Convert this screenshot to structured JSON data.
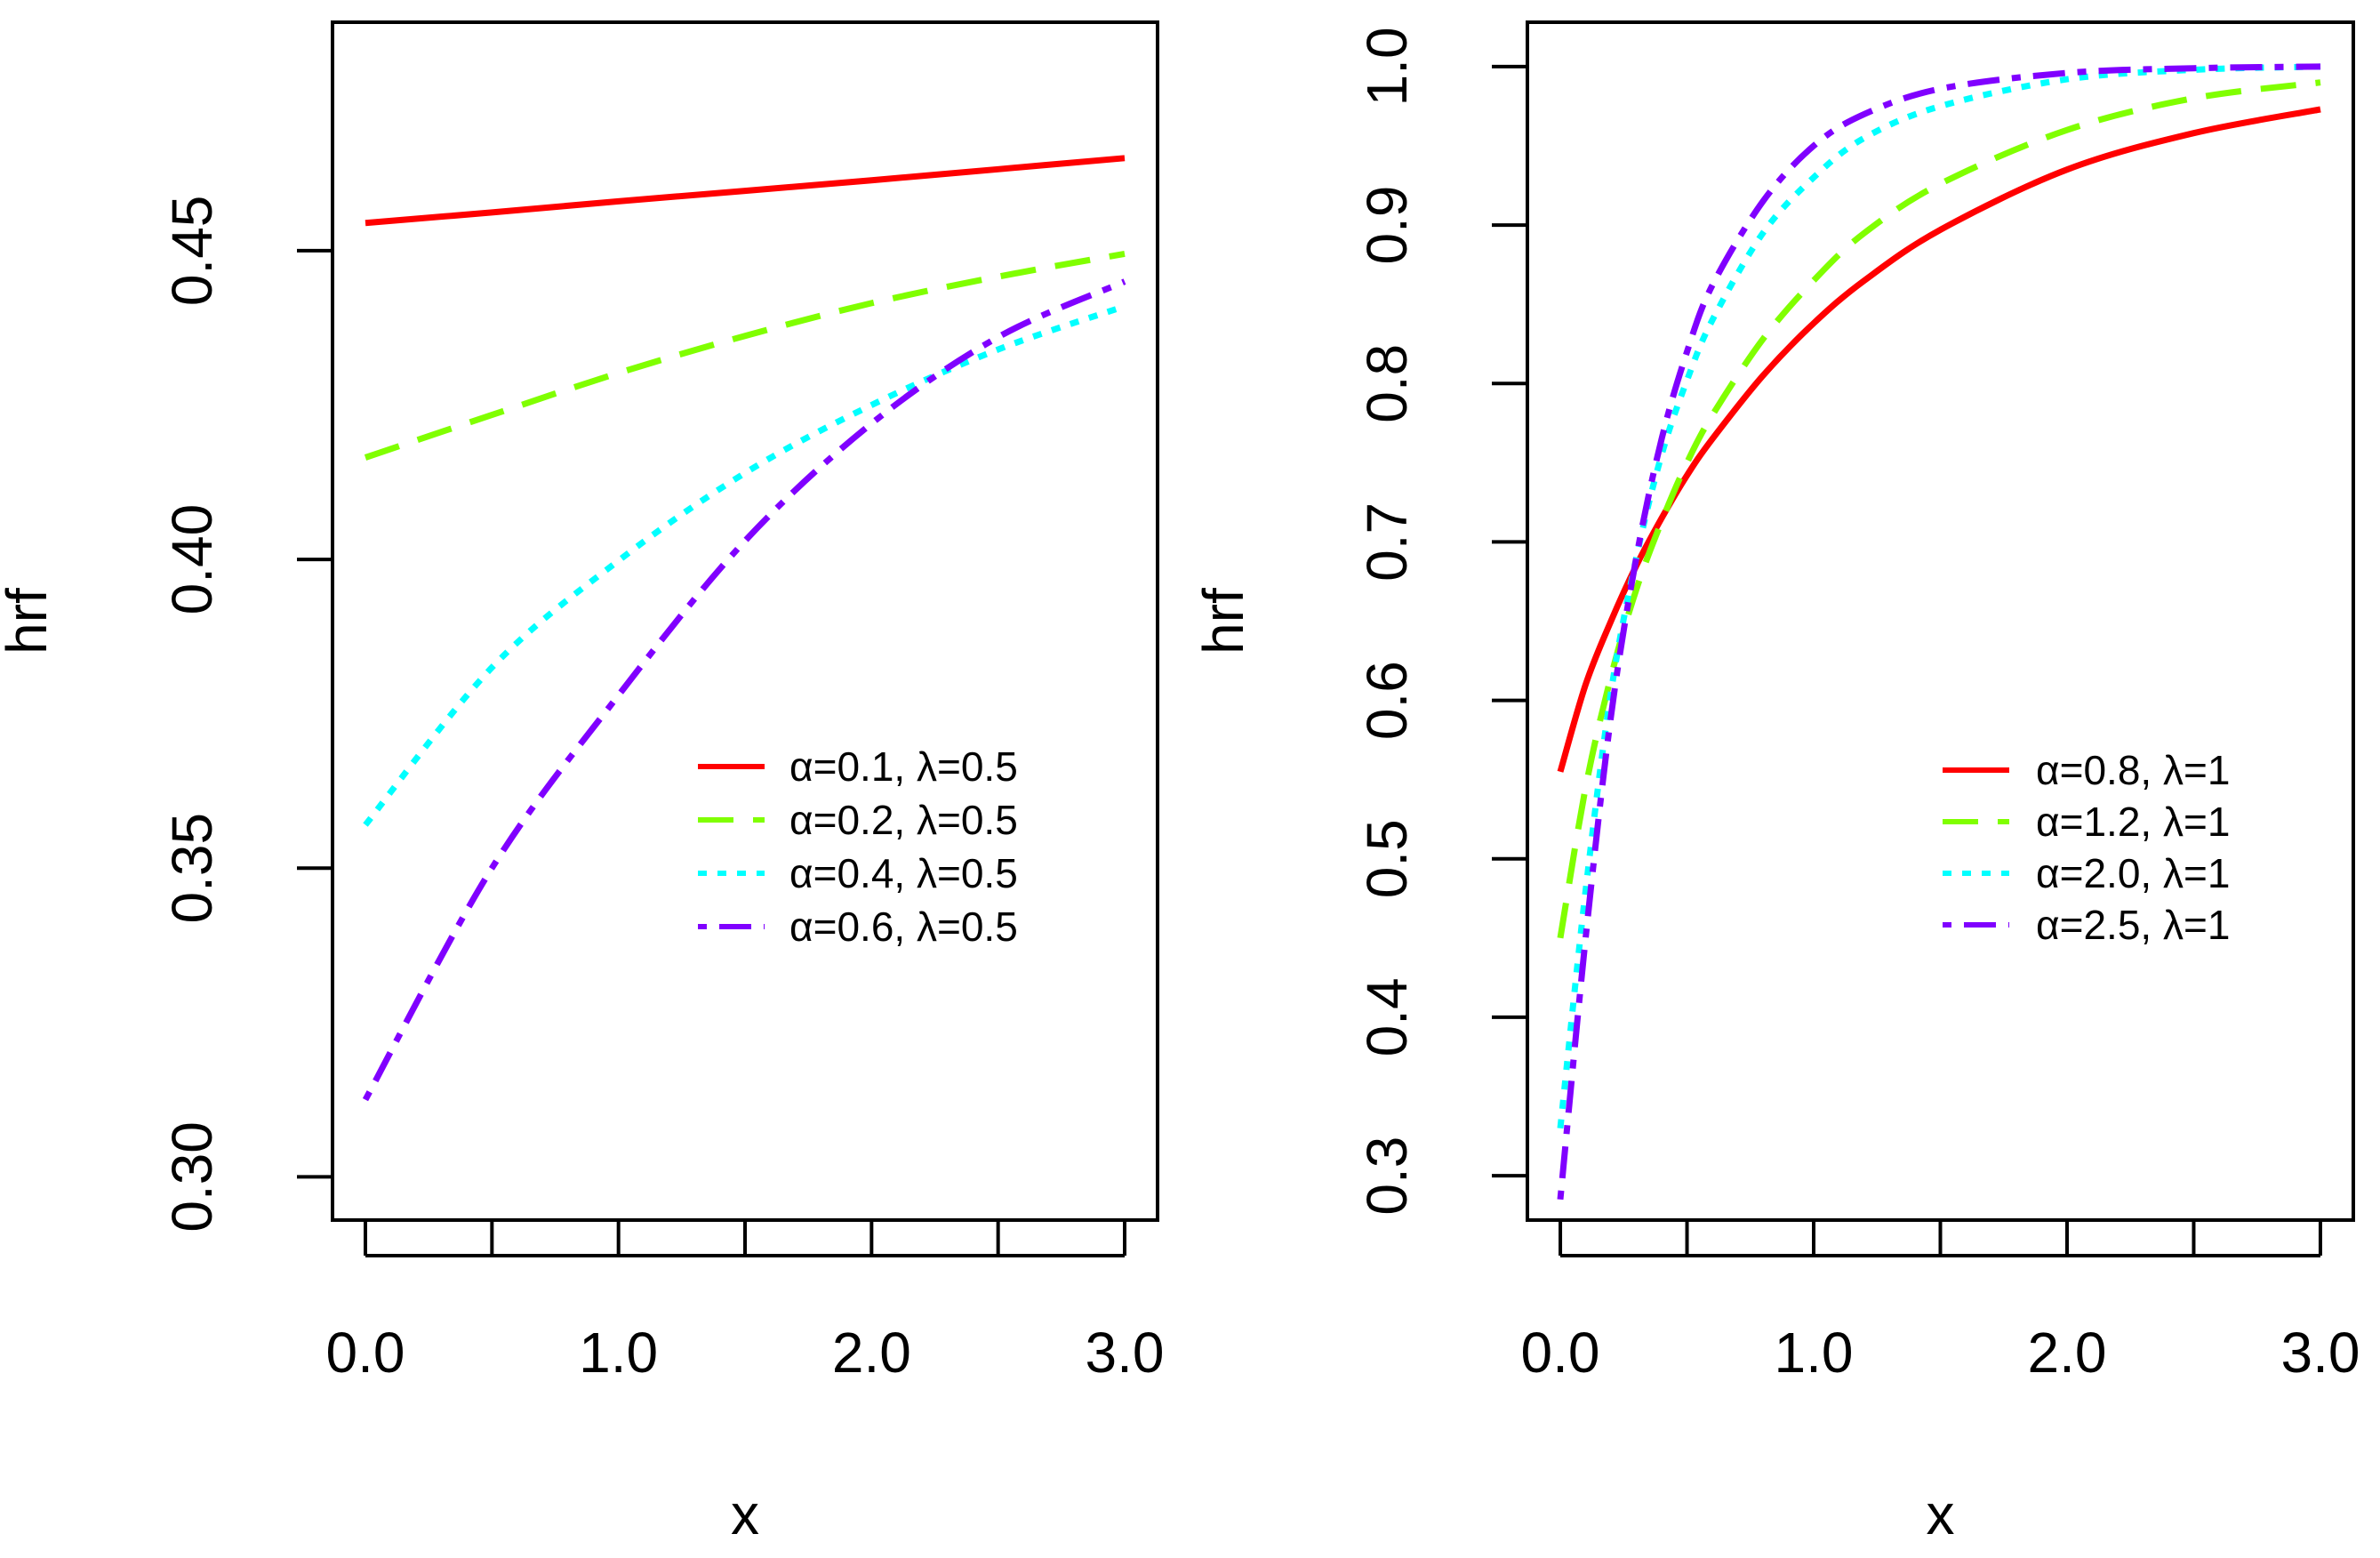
{
  "chart_data": [
    {
      "type": "line",
      "xlabel": "x",
      "ylabel": "hrf",
      "xlim": [
        -0.13,
        3.13
      ],
      "ylim": [
        0.293,
        0.487
      ],
      "xticks": [
        0,
        0.5,
        1,
        1.5,
        2,
        2.5,
        3
      ],
      "xtick_labels": [
        {
          "value": 0,
          "label": "0.0"
        },
        {
          "value": 1,
          "label": "1.0"
        },
        {
          "value": 2,
          "label": "2.0"
        },
        {
          "value": 3,
          "label": "3.0"
        }
      ],
      "yticks": [
        0.3,
        0.35,
        0.4,
        0.45
      ],
      "ytick_labels": [
        "0.30",
        "0.35",
        "0.40",
        "0.45"
      ],
      "legend_position": "center-right",
      "x": [
        0,
        0.5,
        1,
        1.5,
        2,
        2.5,
        3
      ],
      "series": [
        {
          "name": "α=0.1, λ=0.5",
          "color": "#ff0000",
          "dash": "solid",
          "values": [
            0.4545,
            0.4562,
            0.458,
            0.4597,
            0.4614,
            0.4632,
            0.465
          ]
        },
        {
          "name": "α=0.2, λ=0.5",
          "color": "#80ff00",
          "dash": "dashed",
          "values": [
            0.4165,
            0.4234,
            0.4302,
            0.4362,
            0.4415,
            0.4458,
            0.4495
          ]
        },
        {
          "name": "α=0.4, λ=0.5",
          "color": "#00ffff",
          "dash": "dotted",
          "values": [
            0.357,
            0.3825,
            0.3998,
            0.414,
            0.425,
            0.434,
            0.441
          ]
        },
        {
          "name": "α=0.6, λ=0.5",
          "color": "#8000ff",
          "dash": "dotdash",
          "values": [
            0.3125,
            0.35,
            0.378,
            0.403,
            0.422,
            0.436,
            0.445
          ]
        }
      ]
    },
    {
      "type": "line",
      "xlabel": "x",
      "ylabel": "hrf",
      "xlim": [
        -0.13,
        3.13
      ],
      "ylim": [
        0.272,
        1.028
      ],
      "xticks": [
        0,
        0.5,
        1,
        1.5,
        2,
        2.5,
        3
      ],
      "xtick_labels": [
        {
          "value": 0,
          "label": "0.0"
        },
        {
          "value": 1,
          "label": "1.0"
        },
        {
          "value": 2,
          "label": "2.0"
        },
        {
          "value": 3,
          "label": "3.0"
        }
      ],
      "yticks": [
        0.3,
        0.4,
        0.5,
        0.6,
        0.7,
        0.8,
        0.9,
        1.0
      ],
      "ytick_labels": [
        "0.3",
        "0.4",
        "0.5",
        "0.6",
        "0.7",
        "0.8",
        "0.9",
        "1.0"
      ],
      "legend_position": "center-right",
      "x": [
        0,
        0.1,
        0.2,
        0.3,
        0.4,
        0.5,
        0.6,
        0.8,
        1.0,
        1.2,
        1.5,
        2.0,
        2.5,
        3.0
      ],
      "series": [
        {
          "name": "α=0.8, λ=1",
          "color": "#ff0000",
          "dash": "solid",
          "values": [
            0.555,
            0.61,
            0.65,
            0.685,
            0.715,
            0.742,
            0.765,
            0.805,
            0.838,
            0.865,
            0.897,
            0.935,
            0.958,
            0.973
          ]
        },
        {
          "name": "α=1.2, λ=1",
          "color": "#80ff00",
          "dash": "dashed",
          "values": [
            0.45,
            0.545,
            0.615,
            0.67,
            0.713,
            0.75,
            0.78,
            0.828,
            0.865,
            0.895,
            0.926,
            0.96,
            0.98,
            0.99
          ]
        },
        {
          "name": "α=2.0, λ=1",
          "color": "#00ffff",
          "dash": "dotted",
          "values": [
            0.33,
            0.48,
            0.605,
            0.69,
            0.755,
            0.802,
            0.84,
            0.895,
            0.93,
            0.955,
            0.975,
            0.992,
            0.998,
            1.0
          ]
        },
        {
          "name": "α=2.5, λ=1",
          "color": "#8000ff",
          "dash": "dotdash",
          "values": [
            0.285,
            0.45,
            0.59,
            0.69,
            0.765,
            0.82,
            0.862,
            0.915,
            0.95,
            0.97,
            0.986,
            0.996,
            0.999,
            1.0
          ]
        }
      ]
    }
  ]
}
